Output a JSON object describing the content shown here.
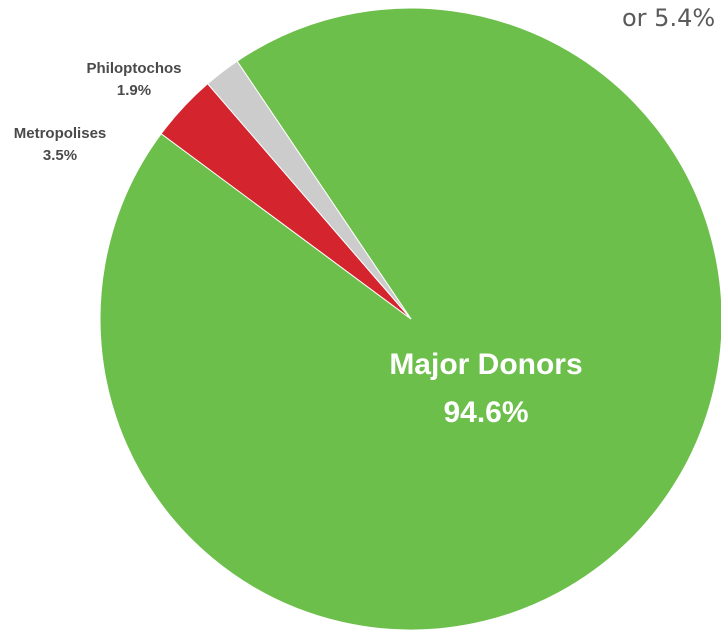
{
  "corner_note": "or 5.4%",
  "chart_data": {
    "type": "pie",
    "slices": [
      {
        "label": "Major Donors",
        "value": 94.6,
        "value_label": "94.6%",
        "color": "#6cbf4a"
      },
      {
        "label": "Metropolises",
        "value": 3.5,
        "value_label": "3.5%",
        "color": "#d4242e"
      },
      {
        "label": "Philoptochos",
        "value": 1.9,
        "value_label": "1.9%",
        "color": "#cccccc"
      }
    ]
  }
}
